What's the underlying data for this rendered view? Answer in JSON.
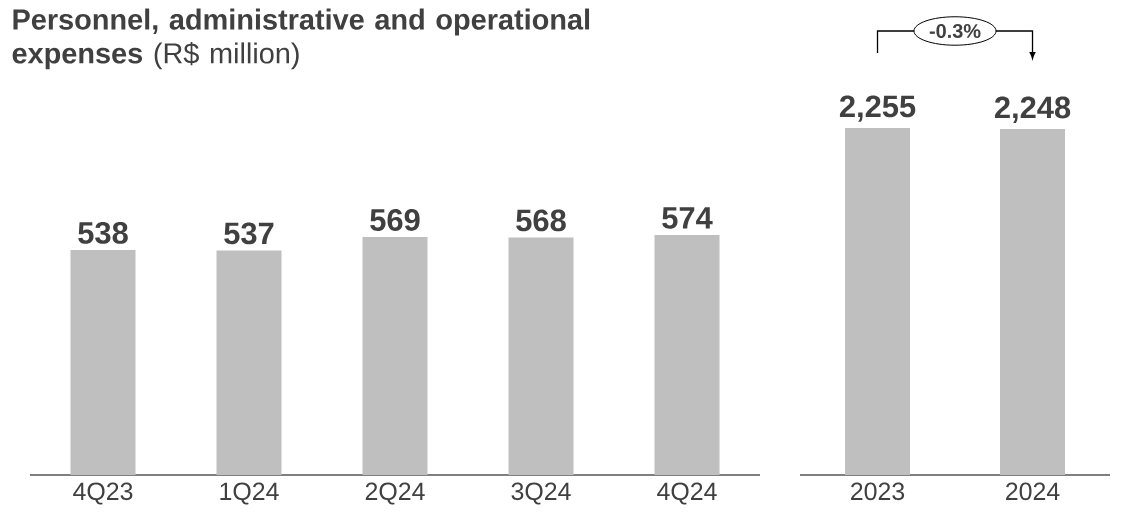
{
  "chart_data": [
    {
      "type": "bar",
      "title": "**Personnel, administrative and operational expenses** (R$ million)",
      "categories": [
        "4Q23",
        "1Q24",
        "2Q24",
        "3Q24",
        "4Q24"
      ],
      "values": [
        538,
        537,
        569,
        568,
        574
      ],
      "value_labels": [
        "538",
        "537",
        "569",
        "568",
        "574"
      ],
      "color": "#bfbfbf"
    },
    {
      "type": "bar",
      "categories": [
        "2023",
        "2024"
      ],
      "values": [
        2255,
        2248
      ],
      "value_labels": [
        "2,255",
        "2,248"
      ],
      "color": "#bfbfbf",
      "annotations": [
        "-0.3%"
      ]
    }
  ]
}
